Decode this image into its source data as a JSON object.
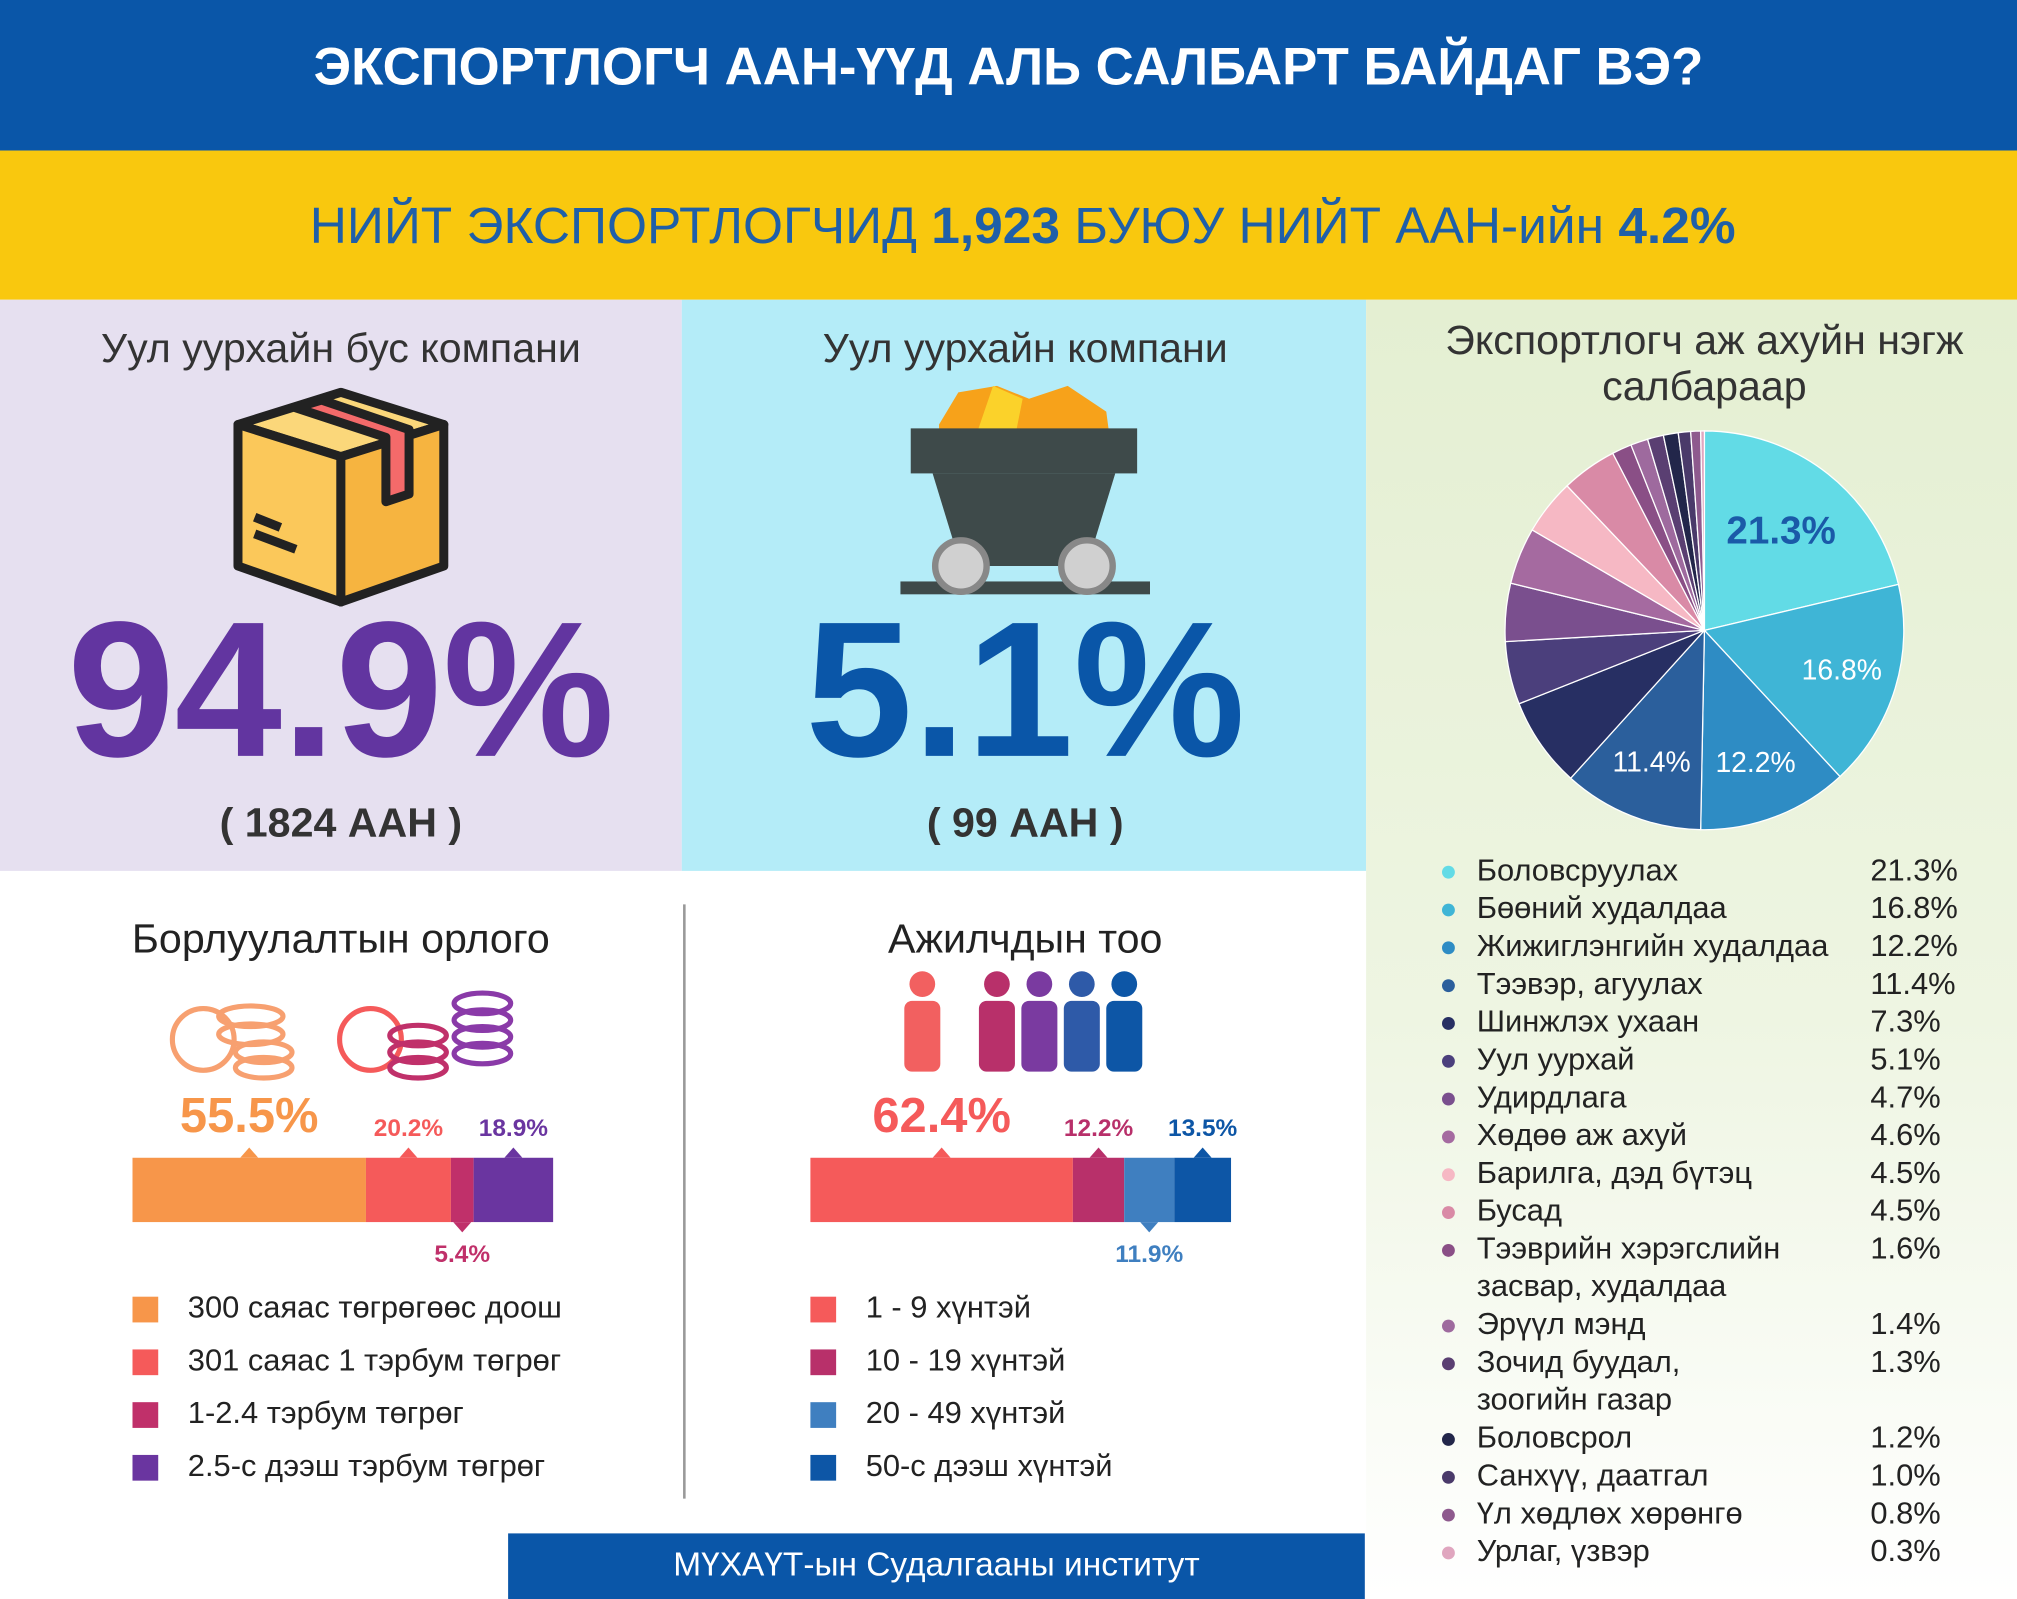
{
  "header": {
    "title": "ЭКСПОРТЛОГЧ ААН-ҮҮД АЛЬ САЛБАРТ БАЙДАГ ВЭ?"
  },
  "subtitle": {
    "parts": [
      "НИЙТ ЭКСПОРТЛОГЧИД ",
      "1,923",
      " БУЮУ НИЙТ ААН-ийн ",
      "4.2%"
    ]
  },
  "panels": [
    {
      "title": "Уул уурхайн бус компани",
      "share": "94.9%",
      "count": "( 1824 ААН )"
    },
    {
      "title": "Уул уурхайн компани",
      "share": "5.1%",
      "count": "( 99 ААН )"
    }
  ],
  "footer": "МҮХАҮТ-ын Судалгааны институт",
  "chart_data": [
    {
      "type": "stacked_bar",
      "title": "Борлуулалтын орлого",
      "series": [
        {
          "name": "300 саяас төгрөгөөс доош",
          "color": "#f7964a",
          "values": [
            55.5
          ],
          "value_labels": [
            "55.5%"
          ]
        },
        {
          "name": "301 саяас 1 тэрбум төгрөг",
          "color": "#f55a5a",
          "values": [
            20.2
          ],
          "value_labels": [
            "20.2%"
          ]
        },
        {
          "name": "1-2.4 тэрбум төгрөг",
          "color": "#c0306a",
          "values": [
            5.4
          ],
          "value_labels": [
            "5.4%"
          ]
        },
        {
          "name": "2.5-с дээш тэрбум төгрөг",
          "color": "#6a35a0",
          "values": [
            18.9
          ],
          "value_labels": [
            "18.9%"
          ]
        }
      ]
    },
    {
      "type": "stacked_bar",
      "title": "Ажилчдын тоо",
      "series": [
        {
          "name": "1 - 9 хүнтэй",
          "color": "#f55a5a",
          "values": [
            62.4
          ],
          "value_labels": [
            "62.4%"
          ]
        },
        {
          "name": "10 - 19 хүнтэй",
          "color": "#b8306a",
          "values": [
            12.2
          ],
          "value_labels": [
            "12.2%"
          ]
        },
        {
          "name": "20 - 49 хүнтэй",
          "color": "#3f7fc0",
          "values": [
            11.9
          ],
          "value_labels": [
            "11.9%"
          ]
        },
        {
          "name": "50-с дээш хүнтэй",
          "color": "#0d56a6",
          "values": [
            13.5
          ],
          "value_labels": [
            "13.5%"
          ]
        }
      ]
    },
    {
      "type": "pie",
      "title": "Экспортлогч аж ахуйн нэгж салбараар",
      "categories": [
        "Боловсруулах",
        "Бөөний худалдаа",
        "Жижиглэнгийн худалдаа",
        "Тээвэр, агуулах",
        "Шинжлэх ухаан",
        "Уул уурхай",
        "Удирдлага",
        "Хөдөө аж ахуй",
        "Барилга, дэд бүтэц",
        "Бусад",
        "Тээврийн хэрэгслийн засвар, худалдаа",
        "Эрүүл мэнд",
        "Зочид буудал, зоогийн газар",
        "Боловсрол",
        "Санхүү, даатгал",
        "Үл хөдлөх хөрөнгө",
        "Урлаг, үзвэр"
      ],
      "values": [
        21.3,
        16.8,
        12.2,
        11.4,
        7.3,
        5.1,
        4.7,
        4.6,
        4.5,
        4.5,
        1.6,
        1.4,
        1.3,
        1.2,
        1.0,
        0.8,
        0.3
      ],
      "value_labels": [
        "21.3%",
        "16.8%",
        "12.2%",
        "11.4%",
        "7.3%",
        "5.1%",
        "4.7%",
        "4.6%",
        "4.5%",
        "4.5%",
        "1.6%",
        "1.4%",
        "1.3%",
        "1.2%",
        "1.0%",
        "0.8%",
        "0.3%"
      ],
      "colors": [
        "#62dbe6",
        "#3fb5d6",
        "#2e8cc4",
        "#2b5f9c",
        "#272f63",
        "#4b3f7c",
        "#7a4f8e",
        "#a56aa0",
        "#f6b8c4",
        "#d98aa6",
        "#8a4f86",
        "#9e6a9e",
        "#5a3f72",
        "#22264a",
        "#4a3a6a",
        "#8e5a8e",
        "#e0a6bf"
      ]
    }
  ]
}
